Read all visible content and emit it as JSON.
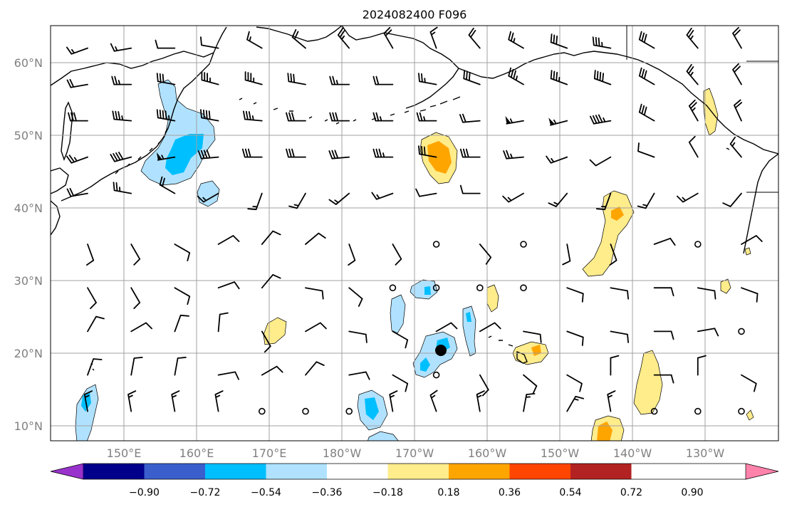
{
  "title": "2024082400 F096",
  "lat_labels": [
    "60°N",
    "50°N",
    "40°N",
    "30°N",
    "20°N",
    "10°N"
  ],
  "lon_labels": [
    "150°E",
    "160°E",
    "170°E",
    "180°W",
    "170°W",
    "160°W",
    "150°W",
    "140°W",
    "130°W"
  ],
  "colorbar": {
    "colors": [
      "#9932cc",
      "#00008b",
      "#3a5fcd",
      "#00bfff",
      "#b0e2ff",
      "#ffffff",
      "#ffec8b",
      "#ffa500",
      "#ff4500",
      "#b22222",
      "#ff82ab"
    ],
    "tick_labels": [
      "−0.90",
      "−0.72",
      "−0.54",
      "−0.36",
      "−0.18",
      "0.18",
      "0.36",
      "0.54",
      "0.72",
      "0.90"
    ]
  },
  "fill_colors": {
    "neg1": "#b0e2ff",
    "neg2": "#00bfff",
    "pos1": "#ffec8b",
    "pos2": "#ffa500",
    "pos3": "#ff4500"
  },
  "wind_barbs": {
    "lons": [
      145,
      151,
      157,
      163,
      169,
      175,
      181,
      187,
      193,
      199,
      205,
      211,
      217,
      223,
      229,
      235
    ],
    "lats": [
      62,
      57,
      52,
      47,
      42,
      35,
      29,
      23,
      17,
      12
    ],
    "rows": [
      [
        [
          250,
          15
        ],
        [
          260,
          15
        ],
        [
          270,
          10
        ],
        [
          280,
          10
        ],
        [
          300,
          15
        ],
        [
          310,
          20
        ],
        [
          320,
          25
        ],
        [
          330,
          20
        ],
        [
          340,
          15
        ],
        [
          320,
          20
        ],
        [
          300,
          25
        ],
        [
          290,
          30
        ],
        [
          280,
          35
        ],
        [
          300,
          30
        ],
        [
          320,
          25
        ],
        [
          330,
          20
        ]
      ],
      [
        [
          260,
          20
        ],
        [
          270,
          25
        ],
        [
          280,
          30
        ],
        [
          285,
          35
        ],
        [
          285,
          35
        ],
        [
          280,
          30
        ],
        [
          270,
          25
        ],
        [
          270,
          20
        ],
        [
          280,
          25
        ],
        [
          290,
          30
        ],
        [
          300,
          35
        ],
        [
          290,
          35
        ],
        [
          290,
          40
        ],
        [
          300,
          30
        ],
        [
          320,
          25
        ],
        [
          330,
          20
        ]
      ],
      [
        [
          270,
          30
        ],
        [
          275,
          35
        ],
        [
          280,
          45
        ],
        [
          280,
          40
        ],
        [
          275,
          35
        ],
        [
          270,
          30
        ],
        [
          270,
          30
        ],
        [
          270,
          25
        ],
        [
          270,
          25
        ],
        [
          265,
          20
        ],
        [
          260,
          55
        ],
        [
          255,
          55
        ],
        [
          260,
          45
        ],
        [
          300,
          30
        ],
        [
          330,
          25
        ],
        [
          335,
          20
        ]
      ],
      [
        [
          250,
          25
        ],
        [
          255,
          40
        ],
        [
          260,
          55
        ],
        [
          265,
          40
        ],
        [
          270,
          30
        ],
        [
          270,
          30
        ],
        [
          265,
          30
        ],
        [
          270,
          35
        ],
        [
          280,
          30
        ],
        [
          270,
          30
        ],
        [
          265,
          25
        ],
        [
          250,
          15
        ],
        [
          240,
          10
        ],
        [
          290,
          10
        ],
        [
          330,
          10
        ],
        [
          320,
          15
        ]
      ],
      [
        [
          260,
          20
        ],
        [
          280,
          25
        ],
        [
          300,
          20
        ],
        [
          240,
          15
        ],
        [
          200,
          15
        ],
        [
          210,
          15
        ],
        [
          230,
          15
        ],
        [
          250,
          15
        ],
        [
          260,
          10
        ],
        [
          270,
          10
        ],
        [
          240,
          15
        ],
        [
          220,
          15
        ],
        [
          200,
          15
        ],
        [
          210,
          15
        ],
        [
          240,
          15
        ],
        [
          220,
          10
        ]
      ],
      [
        [
          160,
          10
        ],
        [
          150,
          10
        ],
        [
          120,
          10
        ],
        [
          60,
          10
        ],
        [
          40,
          10
        ],
        [
          50,
          10
        ],
        [
          160,
          10
        ],
        [
          150,
          10
        ],
        [
          0,
          0
        ],
        [
          140,
          10
        ],
        [
          0,
          0
        ],
        [
          170,
          10
        ],
        [
          160,
          10
        ],
        [
          70,
          10
        ],
        [
          0,
          0
        ],
        [
          60,
          10
        ]
      ],
      [
        [
          150,
          10
        ],
        [
          150,
          10
        ],
        [
          120,
          10
        ],
        [
          70,
          10
        ],
        [
          40,
          10
        ],
        [
          100,
          10
        ],
        [
          130,
          10
        ],
        [
          0,
          0
        ],
        [
          0,
          0
        ],
        [
          0,
          0
        ],
        [
          0,
          0
        ],
        [
          110,
          10
        ],
        [
          100,
          10
        ],
        [
          90,
          10
        ],
        [
          100,
          10
        ],
        [
          110,
          10
        ]
      ],
      [
        [
          30,
          10
        ],
        [
          60,
          10
        ],
        [
          20,
          10
        ],
        [
          5,
          10
        ],
        [
          150,
          10
        ],
        [
          60,
          10
        ],
        [
          100,
          10
        ],
        [
          120,
          10
        ],
        [
          60,
          10
        ],
        [
          60,
          10
        ],
        [
          100,
          10
        ],
        [
          110,
          10
        ],
        [
          100,
          10
        ],
        [
          90,
          10
        ],
        [
          80,
          10
        ],
        [
          0,
          0
        ]
      ],
      [
        [
          20,
          10
        ],
        [
          10,
          10
        ],
        [
          10,
          10
        ],
        [
          80,
          10
        ],
        [
          60,
          10
        ],
        [
          40,
          10
        ],
        [
          80,
          10
        ],
        [
          120,
          10
        ],
        [
          0,
          0
        ],
        [
          150,
          10
        ],
        [
          130,
          10
        ],
        [
          120,
          10
        ],
        [
          0,
          10
        ],
        [
          90,
          10
        ],
        [
          0,
          10
        ],
        [
          120,
          10
        ]
      ],
      [
        [
          350,
          15
        ],
        [
          350,
          15
        ],
        [
          350,
          15
        ],
        [
          350,
          15
        ],
        [
          0,
          0
        ],
        [
          0,
          0
        ],
        [
          0,
          0
        ],
        [
          350,
          15
        ],
        [
          340,
          15
        ],
        [
          350,
          15
        ],
        [
          10,
          15
        ],
        [
          30,
          15
        ],
        [
          350,
          15
        ],
        [
          0,
          0
        ],
        [
          0,
          0
        ],
        [
          0,
          0
        ]
      ]
    ]
  }
}
